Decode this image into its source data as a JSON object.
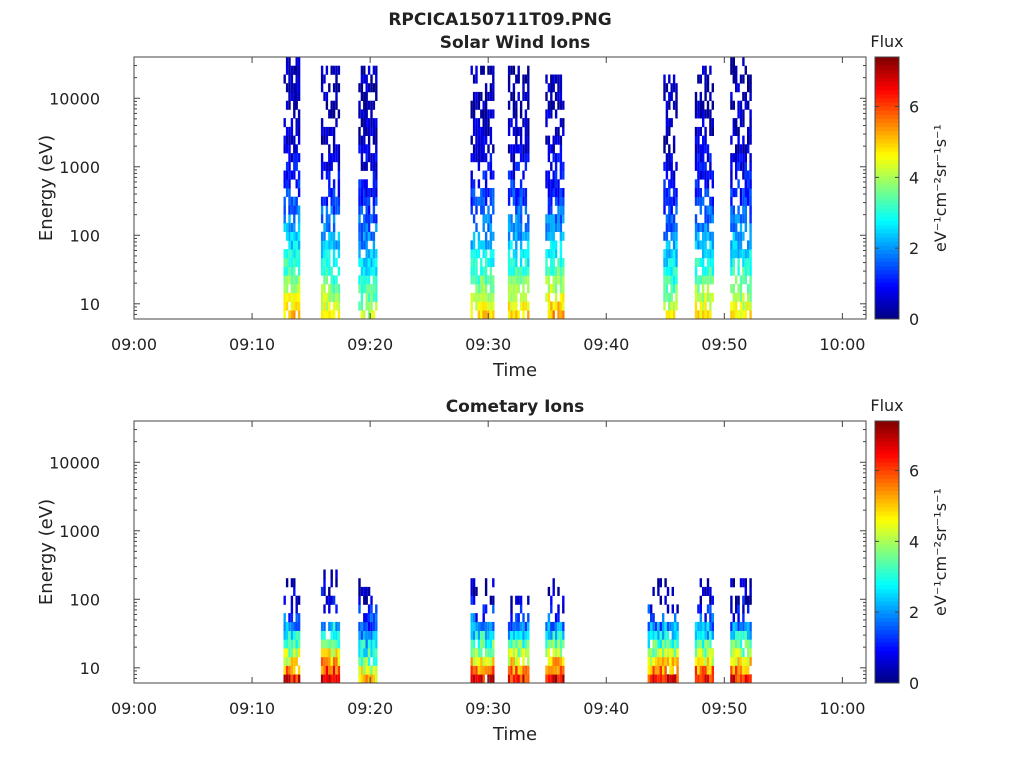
{
  "figure": {
    "title": "RPCICA150711T09.PNG"
  },
  "chart_data": [
    {
      "type": "heatmap",
      "title": "Solar Wind Ions",
      "xlabel": "Time",
      "ylabel": "Energy (eV)",
      "x_ticks": [
        "09:00",
        "09:10",
        "09:20",
        "09:30",
        "09:40",
        "09:50",
        "10:00"
      ],
      "x_range": [
        "09:00",
        "10:02"
      ],
      "y_scale": "log",
      "y_range": [
        6,
        40000
      ],
      "y_ticks": [
        "10",
        "100",
        "1000",
        "10000"
      ],
      "colorbar": {
        "label": "Flux",
        "unit": "eV⁻¹cm⁻²sr⁻¹s⁻¹",
        "range": [
          0,
          7.4
        ],
        "ticks": [
          "0",
          "2",
          "4",
          "6"
        ],
        "colormap": "jet"
      },
      "bursts": [
        {
          "start": "09:12:40",
          "end": "09:14:00",
          "energy_max": 35000,
          "peak_flux": 5.0
        },
        {
          "start": "09:15:50",
          "end": "09:17:20",
          "energy_max": 30000,
          "peak_flux": 4.6
        },
        {
          "start": "09:19:00",
          "end": "09:20:30",
          "energy_max": 30000,
          "peak_flux": 4.0
        },
        {
          "start": "09:28:30",
          "end": "09:30:20",
          "energy_max": 30000,
          "peak_flux": 4.8
        },
        {
          "start": "09:31:40",
          "end": "09:33:20",
          "energy_max": 32000,
          "peak_flux": 4.8
        },
        {
          "start": "09:34:50",
          "end": "09:36:20",
          "energy_max": 25000,
          "peak_flux": 5.2
        },
        {
          "start": "09:44:50",
          "end": "09:46:00",
          "energy_max": 25000,
          "peak_flux": 4.3
        },
        {
          "start": "09:47:30",
          "end": "09:49:00",
          "energy_max": 30000,
          "peak_flux": 4.8
        },
        {
          "start": "09:50:30",
          "end": "09:52:10",
          "energy_max": 35000,
          "peak_flux": 4.6
        }
      ]
    },
    {
      "type": "heatmap",
      "title": "Cometary Ions",
      "xlabel": "Time",
      "ylabel": "Energy (eV)",
      "x_ticks": [
        "09:00",
        "09:10",
        "09:20",
        "09:30",
        "09:40",
        "09:50",
        "10:00"
      ],
      "x_range": [
        "09:00",
        "10:02"
      ],
      "y_scale": "log",
      "y_range": [
        6,
        40000
      ],
      "y_ticks": [
        "10",
        "100",
        "1000",
        "10000"
      ],
      "colorbar": {
        "label": "Flux",
        "unit": "eV⁻¹cm⁻²sr⁻¹s⁻¹",
        "range": [
          0,
          7.4
        ],
        "ticks": [
          "0",
          "2",
          "4",
          "6"
        ],
        "colormap": "jet"
      },
      "bursts": [
        {
          "start": "09:12:40",
          "end": "09:14:00",
          "energy_max": 220,
          "peak_flux": 6.8
        },
        {
          "start": "09:15:50",
          "end": "09:17:20",
          "energy_max": 270,
          "peak_flux": 7.2
        },
        {
          "start": "09:19:00",
          "end": "09:20:30",
          "energy_max": 220,
          "peak_flux": 5.2
        },
        {
          "start": "09:28:30",
          "end": "09:30:20",
          "energy_max": 200,
          "peak_flux": 7.0
        },
        {
          "start": "09:31:40",
          "end": "09:33:20",
          "energy_max": 200,
          "peak_flux": 6.8
        },
        {
          "start": "09:34:50",
          "end": "09:36:20",
          "energy_max": 210,
          "peak_flux": 7.0
        },
        {
          "start": "09:43:30",
          "end": "09:46:00",
          "energy_max": 200,
          "peak_flux": 6.8
        },
        {
          "start": "09:47:30",
          "end": "09:49:00",
          "energy_max": 200,
          "peak_flux": 6.8
        },
        {
          "start": "09:50:30",
          "end": "09:52:10",
          "energy_max": 210,
          "peak_flux": 6.8
        }
      ]
    }
  ]
}
